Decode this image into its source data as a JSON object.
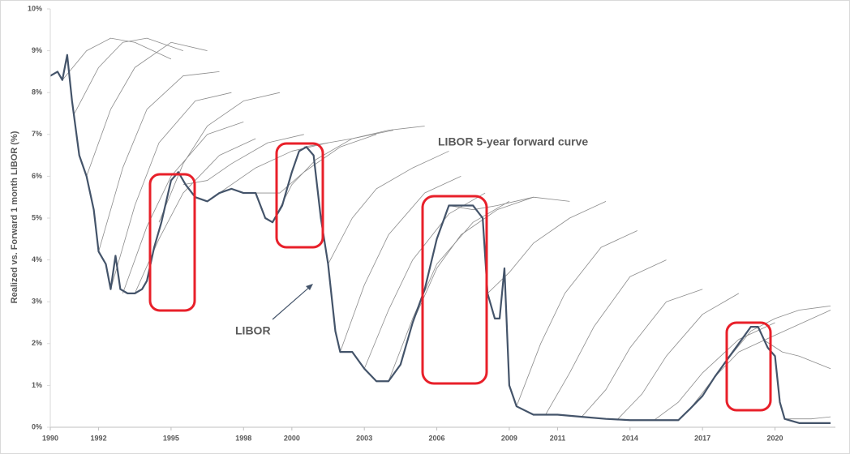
{
  "chart_data": {
    "type": "line",
    "y_label": "Realized vs. Forward 1 month LIBOR (%)",
    "annotations": [
      "LIBOR 5-year forward curve",
      "LIBOR"
    ],
    "xlim": [
      1990,
      2022.5
    ],
    "xticks": [
      1990,
      1992,
      1995,
      1998,
      2000,
      2003,
      2006,
      2009,
      2011,
      2014,
      2017,
      2020
    ],
    "ylim": [
      0,
      10
    ],
    "yticks": [
      {
        "value": 0,
        "label": "0%"
      },
      {
        "value": 1,
        "label": "1%"
      },
      {
        "value": 2,
        "label": "2%"
      },
      {
        "value": 3,
        "label": "3%"
      },
      {
        "value": 4,
        "label": "4%"
      },
      {
        "value": 5,
        "label": "5%"
      },
      {
        "value": 6,
        "label": "6%"
      },
      {
        "value": 7,
        "label": "7%"
      },
      {
        "value": 8,
        "label": "8%"
      },
      {
        "value": 9,
        "label": "9%"
      },
      {
        "value": 10,
        "label": "10%"
      }
    ],
    "grid": false,
    "series": [
      {
        "color": "#44546a",
        "linewidth": 2.2,
        "x": [
          1990.0,
          1990.3,
          1990.5,
          1990.7,
          1990.9,
          1991.2,
          1991.5,
          1991.8,
          1992.0,
          1992.3,
          1992.5,
          1992.7,
          1992.9,
          1993.2,
          1993.5,
          1993.8,
          1994.0,
          1994.3,
          1994.6,
          1995.0,
          1995.3,
          1995.6,
          1996.0,
          1996.5,
          1997.0,
          1997.5,
          1998.0,
          1998.5,
          1998.9,
          1999.2,
          1999.6,
          2000.0,
          2000.3,
          2000.6,
          2000.9,
          2001.2,
          2001.5,
          2001.8,
          2002.0,
          2002.5,
          2003.0,
          2003.5,
          2004.0,
          2004.5,
          2005.0,
          2005.5,
          2006.0,
          2006.5,
          2007.0,
          2007.5,
          2007.9,
          2008.1,
          2008.4,
          2008.6,
          2008.8,
          2009.0,
          2009.3,
          2010.0,
          2011.0,
          2012.0,
          2013.0,
          2014.0,
          2015.0,
          2016.0,
          2016.5,
          2017.0,
          2017.5,
          2018.0,
          2018.5,
          2019.0,
          2019.3,
          2019.7,
          2020.0,
          2020.2,
          2020.4,
          2021.0,
          2022.3
        ],
        "values": [
          8.4,
          8.5,
          8.3,
          8.9,
          7.8,
          6.5,
          6.0,
          5.2,
          4.2,
          3.9,
          3.3,
          4.1,
          3.3,
          3.2,
          3.2,
          3.3,
          3.5,
          4.3,
          4.9,
          5.9,
          6.1,
          5.8,
          5.5,
          5.4,
          5.6,
          5.7,
          5.6,
          5.6,
          5.0,
          4.9,
          5.3,
          6.1,
          6.6,
          6.7,
          6.5,
          5.0,
          3.9,
          2.3,
          1.8,
          1.8,
          1.4,
          1.1,
          1.1,
          1.5,
          2.5,
          3.3,
          4.5,
          5.3,
          5.3,
          5.3,
          5.0,
          3.2,
          2.6,
          2.6,
          3.8,
          1.0,
          0.5,
          0.3,
          0.3,
          0.25,
          0.2,
          0.17,
          0.17,
          0.17,
          0.45,
          0.75,
          1.2,
          1.6,
          2.0,
          2.4,
          2.4,
          1.9,
          1.7,
          0.6,
          0.2,
          0.1,
          0.1
        ]
      },
      {
        "color": "#8c8c8c",
        "linewidth": 0.8,
        "x": [
          1990.5,
          1991.5,
          1992.5,
          1993.5,
          1995.0
        ],
        "values": [
          8.3,
          9.0,
          9.3,
          9.2,
          8.8
        ]
      },
      {
        "color": "#8c8c8c",
        "linewidth": 0.8,
        "x": [
          1991.0,
          1992.0,
          1993.0,
          1994.0,
          1995.5
        ],
        "values": [
          7.5,
          8.6,
          9.2,
          9.3,
          9.0
        ]
      },
      {
        "color": "#8c8c8c",
        "linewidth": 0.8,
        "x": [
          1991.5,
          1992.5,
          1993.5,
          1995.0,
          1996.5
        ],
        "values": [
          6.0,
          7.6,
          8.6,
          9.2,
          9.0
        ]
      },
      {
        "color": "#8c8c8c",
        "linewidth": 0.8,
        "x": [
          1992.0,
          1993.0,
          1994.0,
          1995.5,
          1997.0
        ],
        "values": [
          4.2,
          6.2,
          7.6,
          8.4,
          8.5
        ]
      },
      {
        "color": "#8c8c8c",
        "linewidth": 0.8,
        "x": [
          1992.5,
          1993.5,
          1994.5,
          1996.0,
          1997.5
        ],
        "values": [
          3.3,
          5.3,
          6.8,
          7.8,
          8.0
        ]
      },
      {
        "color": "#8c8c8c",
        "linewidth": 0.8,
        "x": [
          1993.0,
          1994.0,
          1995.0,
          1996.5,
          1998.0
        ],
        "values": [
          3.2,
          4.8,
          6.0,
          7.0,
          7.3
        ]
      },
      {
        "color": "#8c8c8c",
        "linewidth": 0.8,
        "x": [
          1993.5,
          1994.5,
          1995.5,
          1997.0,
          1998.5
        ],
        "values": [
          3.2,
          4.5,
          5.6,
          6.5,
          6.9
        ]
      },
      {
        "color": "#8c8c8c",
        "linewidth": 0.8,
        "x": [
          1994.5,
          1995.5,
          1996.5,
          1998.0,
          1999.5
        ],
        "values": [
          4.9,
          6.3,
          7.2,
          7.8,
          8.0
        ]
      },
      {
        "color": "#8c8c8c",
        "linewidth": 0.8,
        "x": [
          1995.5,
          1996.5,
          1997.5,
          1999.0,
          2000.5
        ],
        "values": [
          5.8,
          5.9,
          6.3,
          6.8,
          7.0
        ]
      },
      {
        "color": "#8c8c8c",
        "linewidth": 0.8,
        "x": [
          1996.5,
          1997.5,
          1998.5,
          2000.0,
          2001.5
        ],
        "values": [
          5.4,
          5.8,
          6.2,
          6.6,
          6.8
        ]
      },
      {
        "color": "#8c8c8c",
        "linewidth": 0.8,
        "x": [
          1998.5,
          1999.5,
          2000.5,
          2002.0,
          2003.5
        ],
        "values": [
          5.6,
          5.6,
          6.1,
          6.7,
          7.0
        ]
      },
      {
        "color": "#8c8c8c",
        "linewidth": 0.8,
        "x": [
          1999.2,
          2000.0,
          2001.0,
          2002.5,
          2004.2
        ],
        "values": [
          4.9,
          5.8,
          6.4,
          6.9,
          7.1
        ]
      },
      {
        "color": "#8c8c8c",
        "linewidth": 0.8,
        "x": [
          2000.5,
          2001.5,
          2002.5,
          2004.0,
          2005.5
        ],
        "values": [
          6.7,
          6.8,
          6.9,
          7.1,
          7.2
        ]
      },
      {
        "color": "#8c8c8c",
        "linewidth": 0.8,
        "x": [
          2001.5,
          2002.5,
          2003.5,
          2005.0,
          2006.5
        ],
        "values": [
          3.9,
          5.0,
          5.7,
          6.2,
          6.6
        ]
      },
      {
        "color": "#8c8c8c",
        "linewidth": 0.8,
        "x": [
          2002.0,
          2003.0,
          2004.0,
          2005.5,
          2007.0
        ],
        "values": [
          1.8,
          3.4,
          4.6,
          5.6,
          6.0
        ]
      },
      {
        "color": "#8c8c8c",
        "linewidth": 0.8,
        "x": [
          2003.0,
          2004.0,
          2005.0,
          2006.5,
          2008.0
        ],
        "values": [
          1.4,
          2.8,
          4.0,
          5.1,
          5.6
        ]
      },
      {
        "color": "#8c8c8c",
        "linewidth": 0.8,
        "x": [
          2004.0,
          2005.0,
          2006.0,
          2007.5,
          2009.0
        ],
        "values": [
          1.1,
          2.6,
          3.9,
          4.9,
          5.4
        ]
      },
      {
        "color": "#8c8c8c",
        "linewidth": 0.8,
        "x": [
          2005.0,
          2006.0,
          2007.0,
          2008.5,
          2010.0
        ],
        "values": [
          2.5,
          3.8,
          4.6,
          5.2,
          5.5
        ]
      },
      {
        "color": "#8c8c8c",
        "linewidth": 0.8,
        "x": [
          2006.5,
          2007.5,
          2008.5,
          2010.0,
          2011.5
        ],
        "values": [
          5.3,
          5.2,
          5.3,
          5.5,
          5.4
        ]
      },
      {
        "color": "#8c8c8c",
        "linewidth": 0.8,
        "x": [
          2008.1,
          2009.0,
          2010.0,
          2011.5,
          2013.0
        ],
        "values": [
          3.2,
          3.7,
          4.4,
          5.0,
          5.4
        ]
      },
      {
        "color": "#8c8c8c",
        "linewidth": 0.8,
        "x": [
          2009.3,
          2010.3,
          2011.3,
          2012.8,
          2014.3
        ],
        "values": [
          0.5,
          2.0,
          3.2,
          4.3,
          4.7
        ]
      },
      {
        "color": "#8c8c8c",
        "linewidth": 0.8,
        "x": [
          2010.5,
          2011.5,
          2012.5,
          2014.0,
          2015.5
        ],
        "values": [
          0.3,
          1.3,
          2.4,
          3.6,
          4.0
        ]
      },
      {
        "color": "#8c8c8c",
        "linewidth": 0.8,
        "x": [
          2012.0,
          2013.0,
          2014.0,
          2015.5,
          2017.0
        ],
        "values": [
          0.25,
          0.9,
          1.9,
          3.0,
          3.3
        ]
      },
      {
        "color": "#8c8c8c",
        "linewidth": 0.8,
        "x": [
          2013.5,
          2014.5,
          2015.5,
          2017.0,
          2018.5
        ],
        "values": [
          0.2,
          0.8,
          1.7,
          2.7,
          3.2
        ]
      },
      {
        "color": "#8c8c8c",
        "linewidth": 0.8,
        "x": [
          2015.0,
          2016.0,
          2017.0,
          2018.5,
          2020.0
        ],
        "values": [
          0.17,
          0.6,
          1.3,
          2.1,
          2.5
        ]
      },
      {
        "color": "#8c8c8c",
        "linewidth": 0.8,
        "x": [
          2016.5,
          2017.5,
          2018.5,
          2020.0,
          2022.3
        ],
        "values": [
          0.45,
          1.2,
          1.8,
          2.2,
          2.8
        ]
      },
      {
        "color": "#8c8c8c",
        "linewidth": 0.8,
        "x": [
          2018.0,
          2019.0,
          2020.0,
          2021.0,
          2022.3
        ],
        "values": [
          1.6,
          2.3,
          2.6,
          2.8,
          2.9
        ]
      },
      {
        "color": "#8c8c8c",
        "linewidth": 0.8,
        "x": [
          2019.5,
          2020.3,
          2021.0,
          2022.3
        ],
        "values": [
          2.1,
          1.8,
          1.7,
          1.4
        ]
      },
      {
        "color": "#8c8c8c",
        "linewidth": 0.8,
        "x": [
          2020.5,
          2021.5,
          2022.3
        ],
        "values": [
          0.2,
          0.2,
          0.25
        ]
      }
    ]
  }
}
